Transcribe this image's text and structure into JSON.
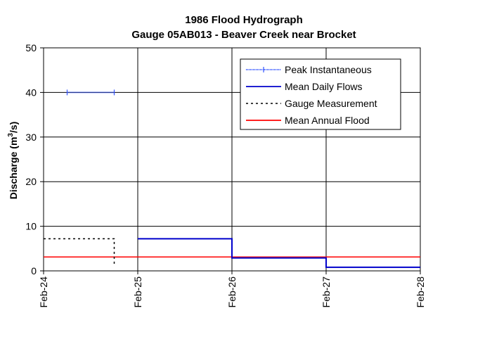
{
  "chart_data": {
    "type": "line",
    "title": "1986 Flood Hydrograph",
    "subtitle": "Gauge 05AB013 - Beaver Creek near Brocket",
    "xlabel": "",
    "ylabel": "Discharge (m",
    "ylabel_sup": "3",
    "ylabel_tail": "/s)",
    "x_ticks": [
      "Feb-24",
      "Feb-25",
      "Feb-26",
      "Feb-27",
      "Feb-28"
    ],
    "xlim": [
      0,
      4
    ],
    "x_unit_note": "days from Feb-24",
    "ylim": [
      0,
      50
    ],
    "y_ticks": [
      0,
      10,
      20,
      30,
      40,
      50
    ],
    "grid": true,
    "legend_position": "top-right",
    "series": [
      {
        "name": "Peak Instantaneous",
        "color": "#3355ff",
        "style": "dotted-with-markers",
        "points": [
          [
            0.25,
            40
          ],
          [
            0.75,
            40
          ]
        ]
      },
      {
        "name": "Mean Daily Flows",
        "color": "#0000cc",
        "style": "solid-step",
        "points": [
          [
            1,
            7.2
          ],
          [
            2,
            7.2
          ],
          [
            2,
            2.9
          ],
          [
            3,
            2.9
          ],
          [
            3,
            0.8
          ],
          [
            4,
            0.8
          ]
        ]
      },
      {
        "name": "Gauge Measurement",
        "color": "#000000",
        "style": "dashed",
        "points": [
          [
            0,
            7.2
          ],
          [
            0.75,
            7.2
          ],
          [
            0.75,
            1
          ]
        ]
      },
      {
        "name": "Mean Annual Flood",
        "color": "#ff0000",
        "style": "solid",
        "points": [
          [
            0,
            3.1
          ],
          [
            4,
            3.1
          ]
        ]
      }
    ]
  }
}
